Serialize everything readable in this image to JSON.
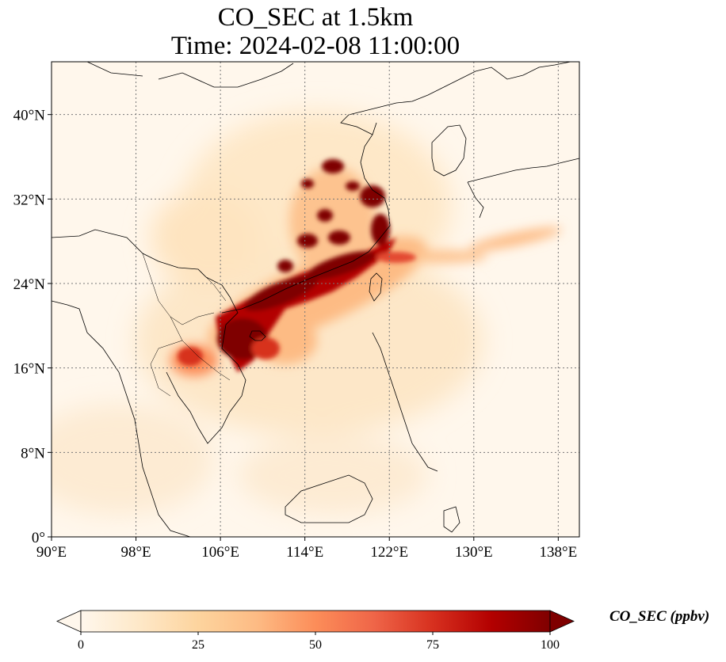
{
  "title": {
    "line1": "CO_SEC at 1.5km",
    "line2": "Time: 2024-02-08 11:00:00"
  },
  "map": {
    "extent": {
      "lon": [
        90,
        140
      ],
      "lat": [
        0,
        45
      ]
    },
    "lon_ticks": [
      {
        "value": 90,
        "label": "90°E"
      },
      {
        "value": 98,
        "label": "98°E"
      },
      {
        "value": 106,
        "label": "106°E"
      },
      {
        "value": 114,
        "label": "114°E"
      },
      {
        "value": 122,
        "label": "122°E"
      },
      {
        "value": 130,
        "label": "130°E"
      },
      {
        "value": 138,
        "label": "138°E"
      }
    ],
    "lat_ticks": [
      {
        "value": 0,
        "label": "0°"
      },
      {
        "value": 8,
        "label": "8°N"
      },
      {
        "value": 16,
        "label": "16°N"
      },
      {
        "value": 24,
        "label": "24°N"
      },
      {
        "value": 32,
        "label": "32°N"
      },
      {
        "value": 40,
        "label": "40°N"
      }
    ],
    "gridlines": true,
    "colormap": "OrRd"
  },
  "colorbar": {
    "label": "CO_SEC (ppbv)",
    "min": 0,
    "max": 100,
    "extend": "both",
    "ticks": [
      {
        "value": 0,
        "label": "0"
      },
      {
        "value": 25,
        "label": "25"
      },
      {
        "value": 50,
        "label": "50"
      },
      {
        "value": 75,
        "label": "75"
      },
      {
        "value": 100,
        "label": "100"
      }
    ],
    "colors": [
      "#fff7ec",
      "#fee8c8",
      "#fdd49e",
      "#fdbb84",
      "#fc8d59",
      "#ef6548",
      "#d7301f",
      "#b30000",
      "#7f0000"
    ]
  }
}
